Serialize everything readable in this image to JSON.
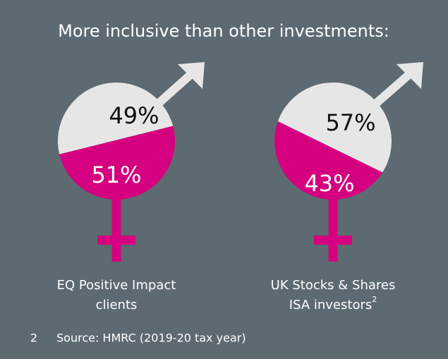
{
  "title": "More inclusive than other investments:",
  "chart_data": [
    {
      "type": "pie",
      "label": "EQ Positive Impact clients",
      "values": [
        49,
        51
      ],
      "value_labels": [
        "49%",
        "51%"
      ],
      "colors": [
        "#e6e6e6",
        "#d4007f"
      ]
    },
    {
      "type": "pie",
      "label": "UK Stocks & Shares ISA investors",
      "footnote_ref": "2",
      "values": [
        57,
        43
      ],
      "value_labels": [
        "57%",
        "43%"
      ],
      "colors": [
        "#e6e6e6",
        "#d4007f"
      ]
    }
  ],
  "footnote": {
    "number": "2",
    "text": "Source: HMRC (2019-20 tax year)"
  }
}
